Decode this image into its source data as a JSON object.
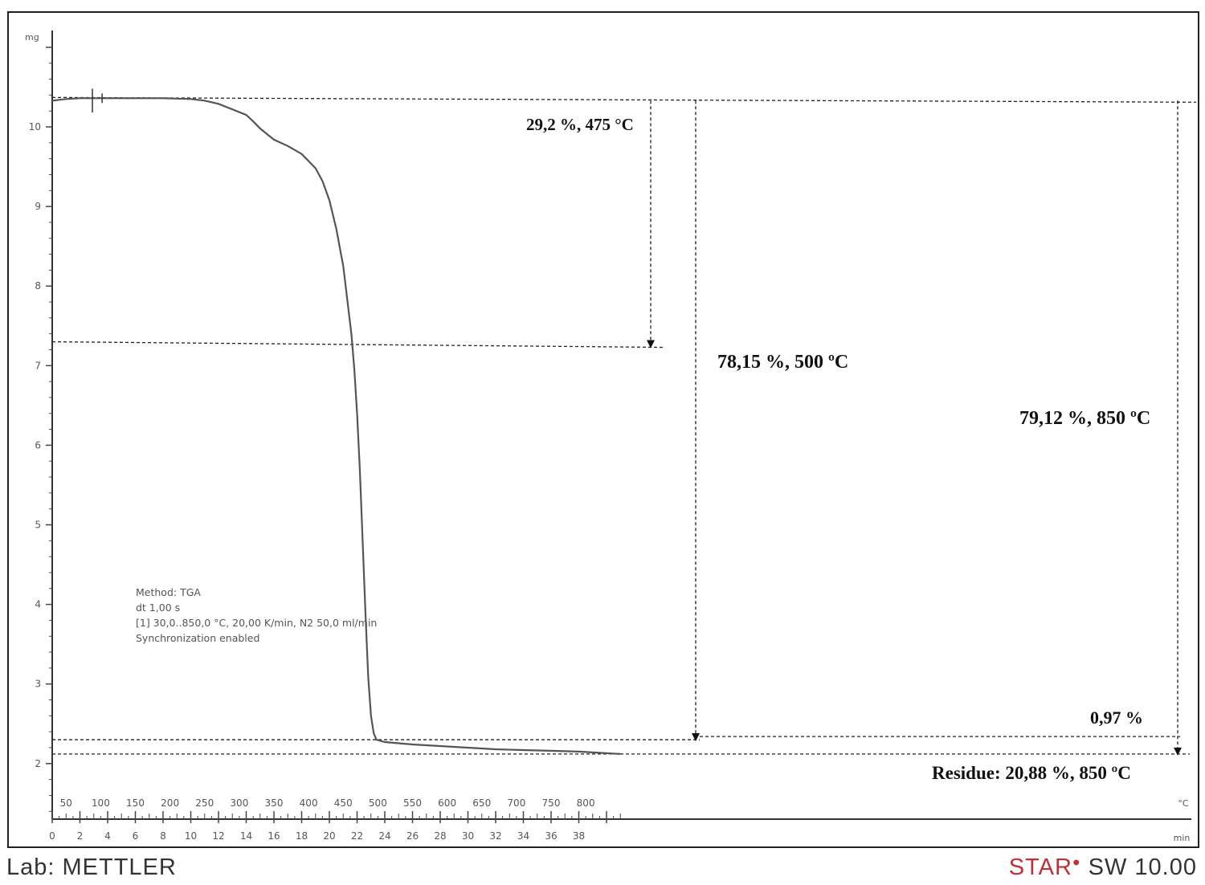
{
  "chart_data": {
    "type": "line",
    "y_unit": "mg",
    "x_unit_time": "min",
    "x_unit_temp": "°C",
    "y_ticks": [
      2,
      3,
      4,
      5,
      6,
      7,
      8,
      9,
      10
    ],
    "time_ticks": [
      0,
      2,
      4,
      6,
      8,
      10,
      12,
      14,
      16,
      18,
      20,
      22,
      24,
      26,
      28,
      30,
      32,
      34,
      36,
      38
    ],
    "temp_ticks": [
      50,
      100,
      150,
      200,
      250,
      300,
      350,
      400,
      450,
      500,
      550,
      600,
      650,
      700,
      750,
      800
    ],
    "xlim": [
      0,
      41.5
    ],
    "ylim": [
      1.3,
      11.2
    ],
    "series": [
      {
        "x": [
          0,
          1,
          2,
          4,
          6,
          8,
          10,
          11,
          12,
          13,
          14,
          14.5,
          15,
          16,
          17,
          18,
          19,
          19.5,
          20,
          20.5,
          21,
          21.3,
          21.6,
          21.8,
          22,
          22.2,
          22.4,
          22.6,
          22.8,
          23,
          23.2,
          23.4,
          24,
          26,
          28,
          30,
          32,
          34,
          36,
          38,
          40,
          41
        ],
        "y": [
          10.33,
          10.35,
          10.36,
          10.36,
          10.36,
          10.36,
          10.35,
          10.33,
          10.29,
          10.22,
          10.15,
          10.07,
          9.98,
          9.84,
          9.76,
          9.66,
          9.48,
          9.32,
          9.08,
          8.72,
          8.25,
          7.82,
          7.38,
          6.95,
          6.4,
          5.7,
          4.8,
          3.9,
          3.1,
          2.6,
          2.38,
          2.3,
          2.27,
          2.24,
          2.22,
          2.2,
          2.18,
          2.17,
          2.16,
          2.15,
          2.13,
          2.12
        ]
      }
    ],
    "annotations": [
      "29,2 %, 475 °C",
      "78,15 %, 500 ºC",
      "79,12 %, 850 ºC",
      "0,97 %",
      "Residue: 20,88 %, 850 ºC"
    ],
    "method_info": [
      "Method: TGA",
      "dt 1,00 s",
      "[1] 30,0..850,0 °C, 20,00 K/min, N2 50,0 ml/min",
      "Synchronization enabled"
    ],
    "grid": false
  },
  "footer": {
    "lab": "Lab: METTLER",
    "brand_star": "STAR",
    "brand_rest": " SW 10.00",
    "brand_color": "#c0303a"
  }
}
